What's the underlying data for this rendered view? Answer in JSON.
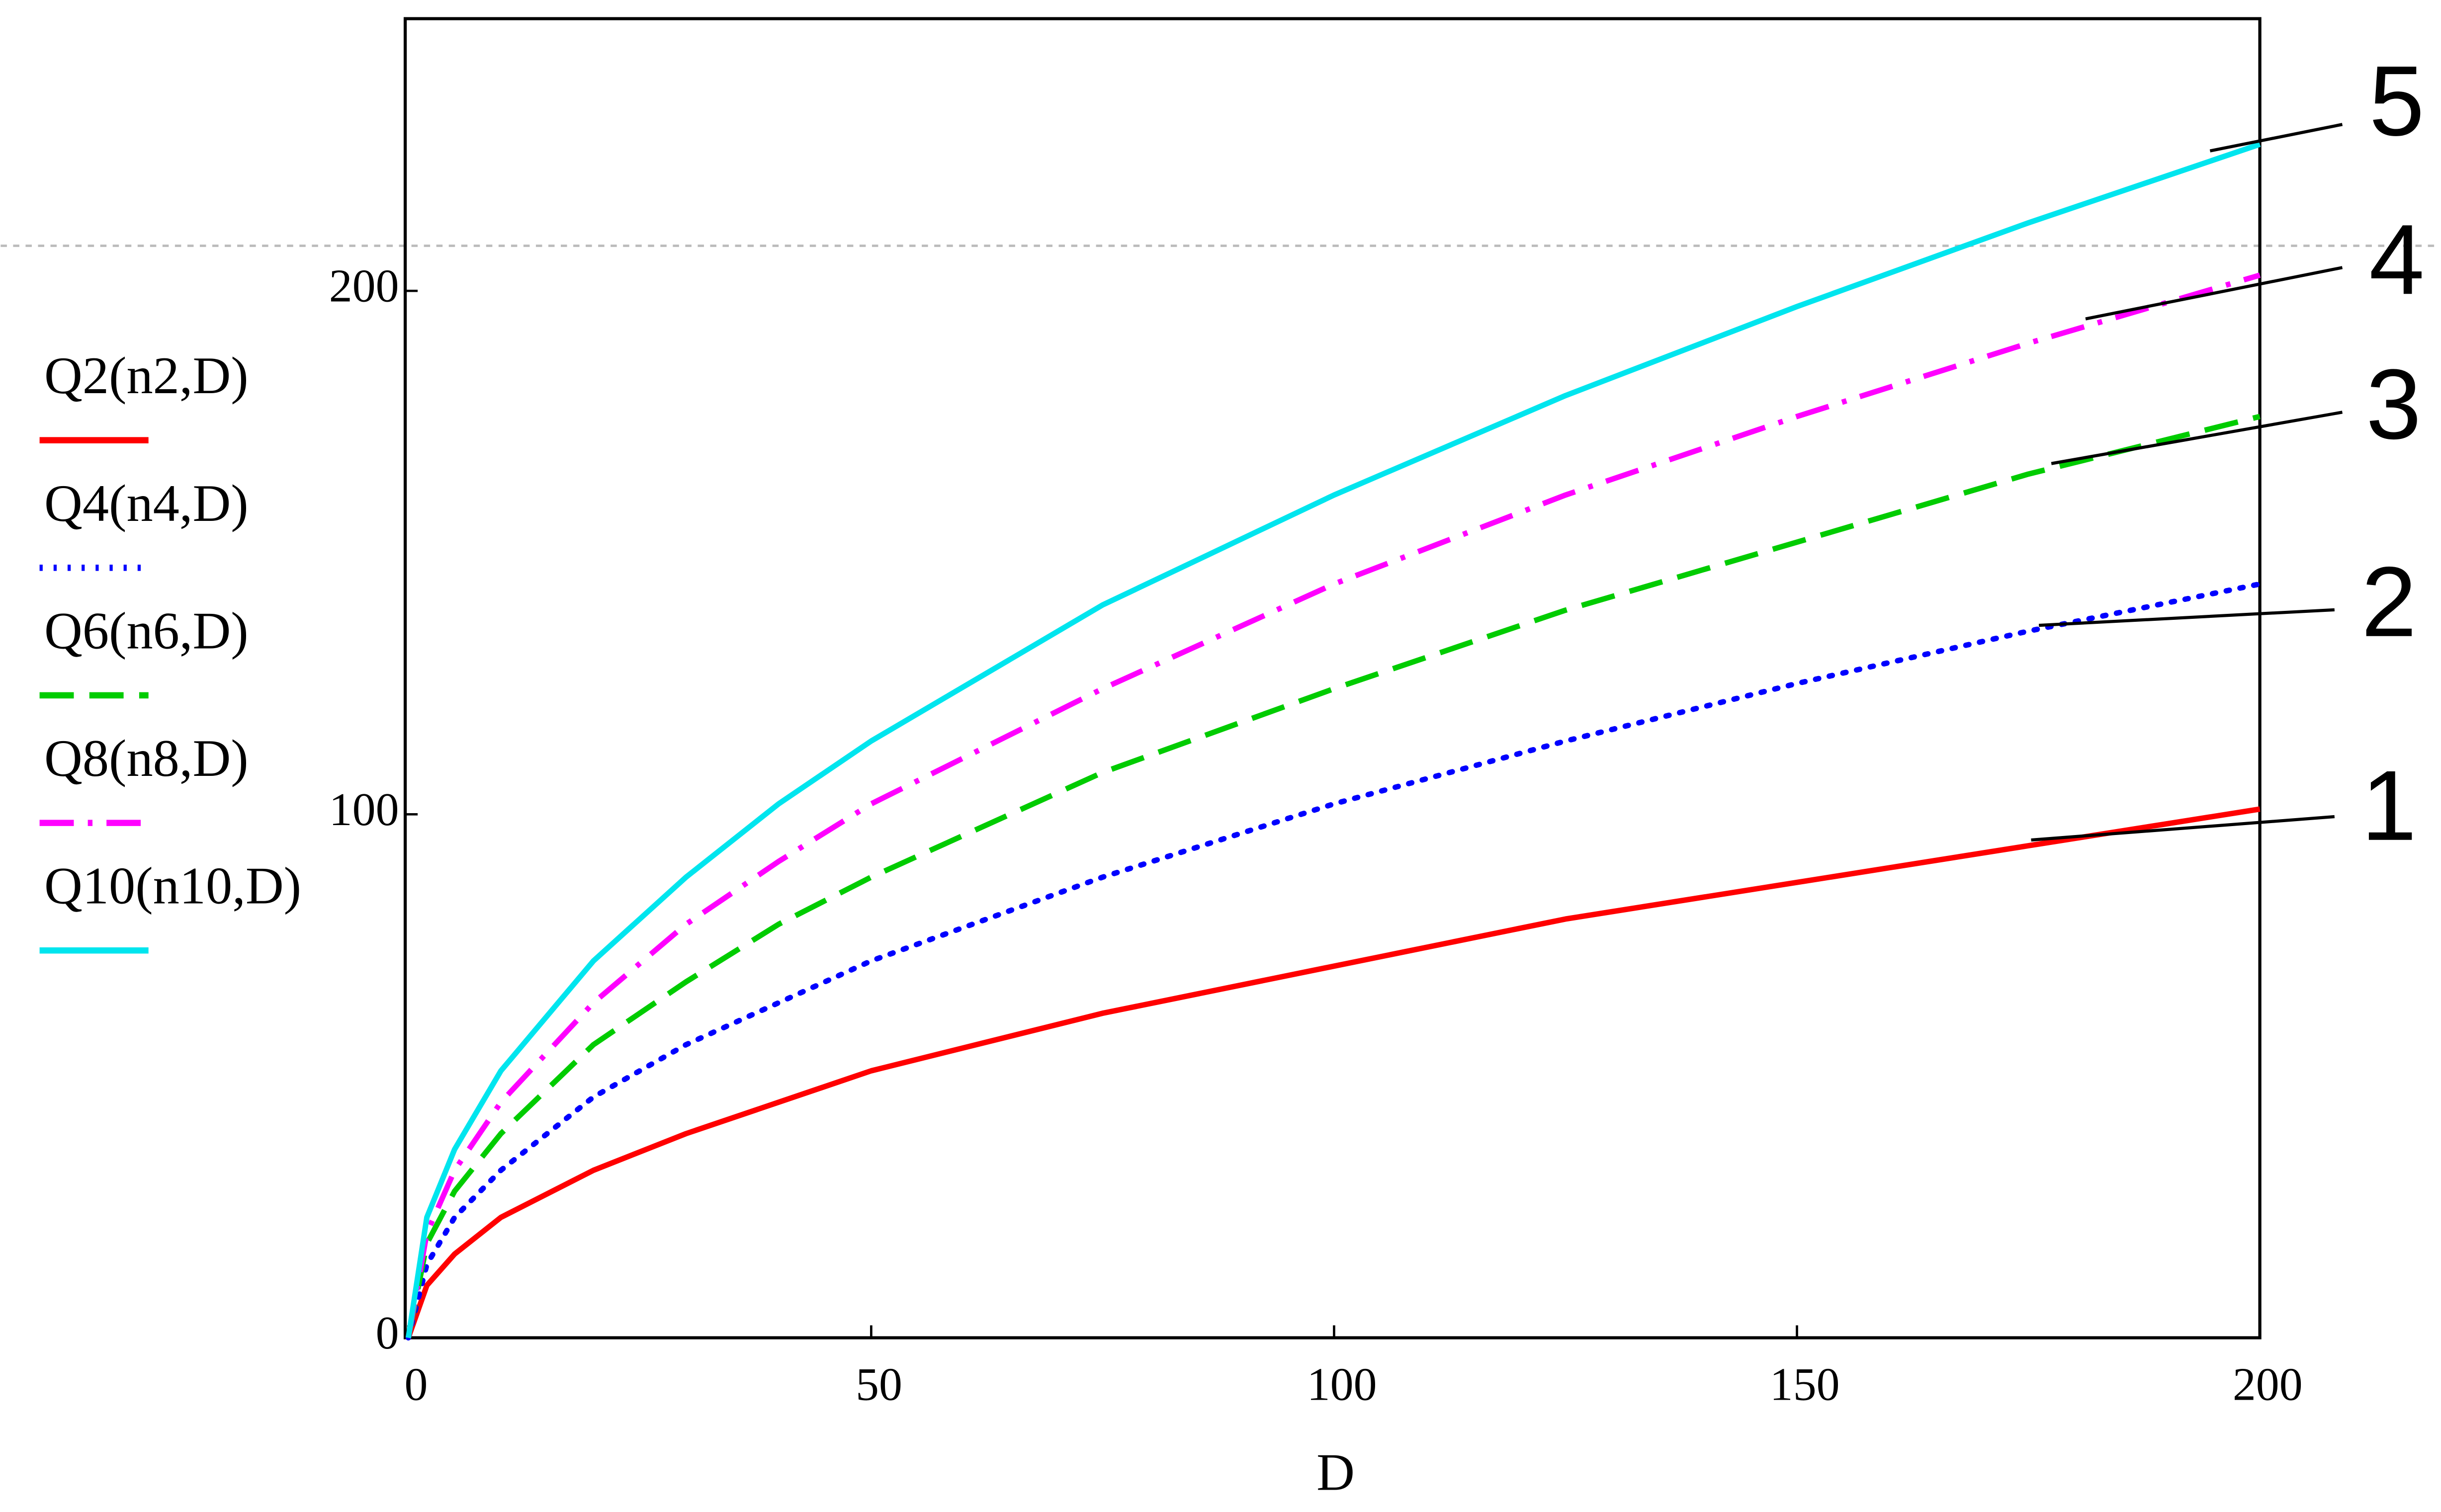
{
  "chart_data": {
    "type": "line",
    "x_label": "D",
    "x": [
      0,
      2,
      5,
      10,
      20,
      30,
      40,
      50,
      75,
      100,
      125,
      150,
      175,
      200
    ],
    "series": [
      {
        "name": "Q2(n2,D)",
        "color": "#ff0000",
        "dash": "solid",
        "values": [
          0,
          10,
          16,
          23,
          32,
          39,
          45,
          51,
          62,
          71,
          80,
          87,
          94,
          101
        ]
      },
      {
        "name": "Q4(n4,D)",
        "color": "#0000ff",
        "dash": "dotted",
        "values": [
          0,
          14,
          23,
          32,
          46,
          56,
          64,
          72,
          88,
          102,
          114,
          125,
          135,
          144
        ]
      },
      {
        "name": "Q6(n6,D)",
        "color": "#00cc00",
        "dash": "dashed",
        "values": [
          0,
          18,
          28,
          39,
          56,
          68,
          79,
          88,
          108,
          124,
          139,
          152,
          165,
          176
        ]
      },
      {
        "name": "Q8(n8,D)",
        "color": "#ff00ff",
        "dash": "dashdot",
        "values": [
          0,
          20,
          32,
          45,
          64,
          79,
          91,
          102,
          124,
          144,
          161,
          176,
          190,
          203
        ]
      },
      {
        "name": "Q10(n10,D)",
        "color": "#00e5ee",
        "dash": "solid",
        "values": [
          0,
          23,
          36,
          51,
          72,
          88,
          102,
          114,
          140,
          161,
          180,
          197,
          213,
          228
        ]
      }
    ],
    "annotations": [
      "1",
      "2",
      "3",
      "4",
      "5"
    ],
    "xlim": [
      0,
      200
    ],
    "xticks": [
      0,
      50,
      100,
      150,
      200
    ],
    "ylim": [
      0,
      252
    ],
    "yticks": [
      0,
      100,
      200
    ],
    "grid": false
  }
}
